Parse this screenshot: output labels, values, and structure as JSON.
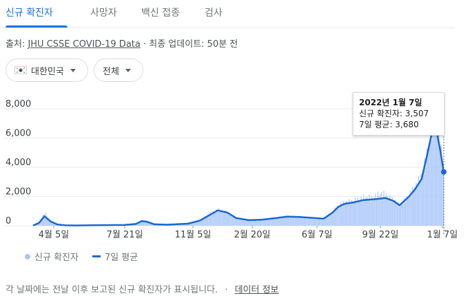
{
  "tabs": [
    {
      "label": "신규 확진자",
      "active": true
    },
    {
      "label": "사망자"
    },
    {
      "label": "백신 접종"
    },
    {
      "label": "검사"
    }
  ],
  "source": {
    "prefix": "출처: ",
    "link": "JHU CSSE COVID-19 Data",
    "suffix": " · 최종 업데이트: 50분 전"
  },
  "filters": {
    "region": "대한민국",
    "period": "전체"
  },
  "tooltip": {
    "date": "2022년 1월 7일",
    "cases": "신규 확진자: 3,507",
    "average": "7일 평균: 3,680"
  },
  "legend": {
    "bars": "신규 확진자",
    "line": "7일 평균"
  },
  "footer": {
    "note": "각 날짜에는 전날 이후 보고된 신규 확진자가 표시됩니다.",
    "separator": "·",
    "link": "데이터 정보"
  },
  "colors": {
    "accent": "#1a73e8",
    "line": "#1967d2",
    "bars": "#a8c7fa",
    "grid": "#e8eaed"
  },
  "chart_data": {
    "type": "area",
    "x": [
      "2020-02-20",
      "2020-03-01",
      "2020-03-10",
      "2020-03-20",
      "2020-04-01",
      "2020-04-15",
      "2020-05-01",
      "2020-06-01",
      "2020-07-01",
      "2020-07-21",
      "2020-08-10",
      "2020-08-20",
      "2020-08-28",
      "2020-09-10",
      "2020-10-01",
      "2020-11-05",
      "2020-11-25",
      "2020-12-10",
      "2020-12-25",
      "2021-01-10",
      "2021-01-25",
      "2021-02-15",
      "2021-03-10",
      "2021-04-01",
      "2021-04-20",
      "2021-05-10",
      "2021-06-07",
      "2021-06-20",
      "2021-07-05",
      "2021-07-15",
      "2021-07-25",
      "2021-08-10",
      "2021-08-25",
      "2021-09-10",
      "2021-09-22",
      "2021-10-01",
      "2021-10-15",
      "2021-10-25",
      "2021-11-10",
      "2021-11-20",
      "2021-12-01",
      "2021-12-10",
      "2021-12-18",
      "2021-12-25",
      "2022-01-01",
      "2022-01-07"
    ],
    "avg7": [
      10,
      200,
      650,
      300,
      80,
      30,
      20,
      35,
      45,
      50,
      120,
      320,
      280,
      100,
      70,
      140,
      350,
      700,
      1050,
      900,
      520,
      380,
      420,
      520,
      620,
      600,
      520,
      480,
      900,
      1300,
      1500,
      1600,
      1750,
      1800,
      1850,
      1900,
      1700,
      1400,
      2000,
      2500,
      3200,
      4800,
      6300,
      6700,
      5200,
      3680
    ],
    "daily": [
      10,
      280,
      900,
      250,
      60,
      25,
      15,
      40,
      50,
      45,
      150,
      400,
      320,
      110,
      80,
      160,
      420,
      800,
      1100,
      850,
      500,
      360,
      450,
      540,
      650,
      600,
      500,
      450,
      1000,
      1400,
      1600,
      1700,
      1900,
      1900,
      2200,
      2100,
      1700,
      1350,
      2100,
      2700,
      3500,
      5000,
      6800,
      7800,
      5500,
      3507
    ],
    "ylim": [
      0,
      8000
    ],
    "yticks": [
      "0",
      "2,000",
      "4,000",
      "6,000",
      "8,000"
    ],
    "xticks": [
      "4월 5일",
      "7월 21일",
      "11월 5일",
      "2월 20일",
      "6월 7일",
      "9월 22일",
      "1월 7일"
    ],
    "grid": true,
    "legend_position": "bottom-left"
  }
}
